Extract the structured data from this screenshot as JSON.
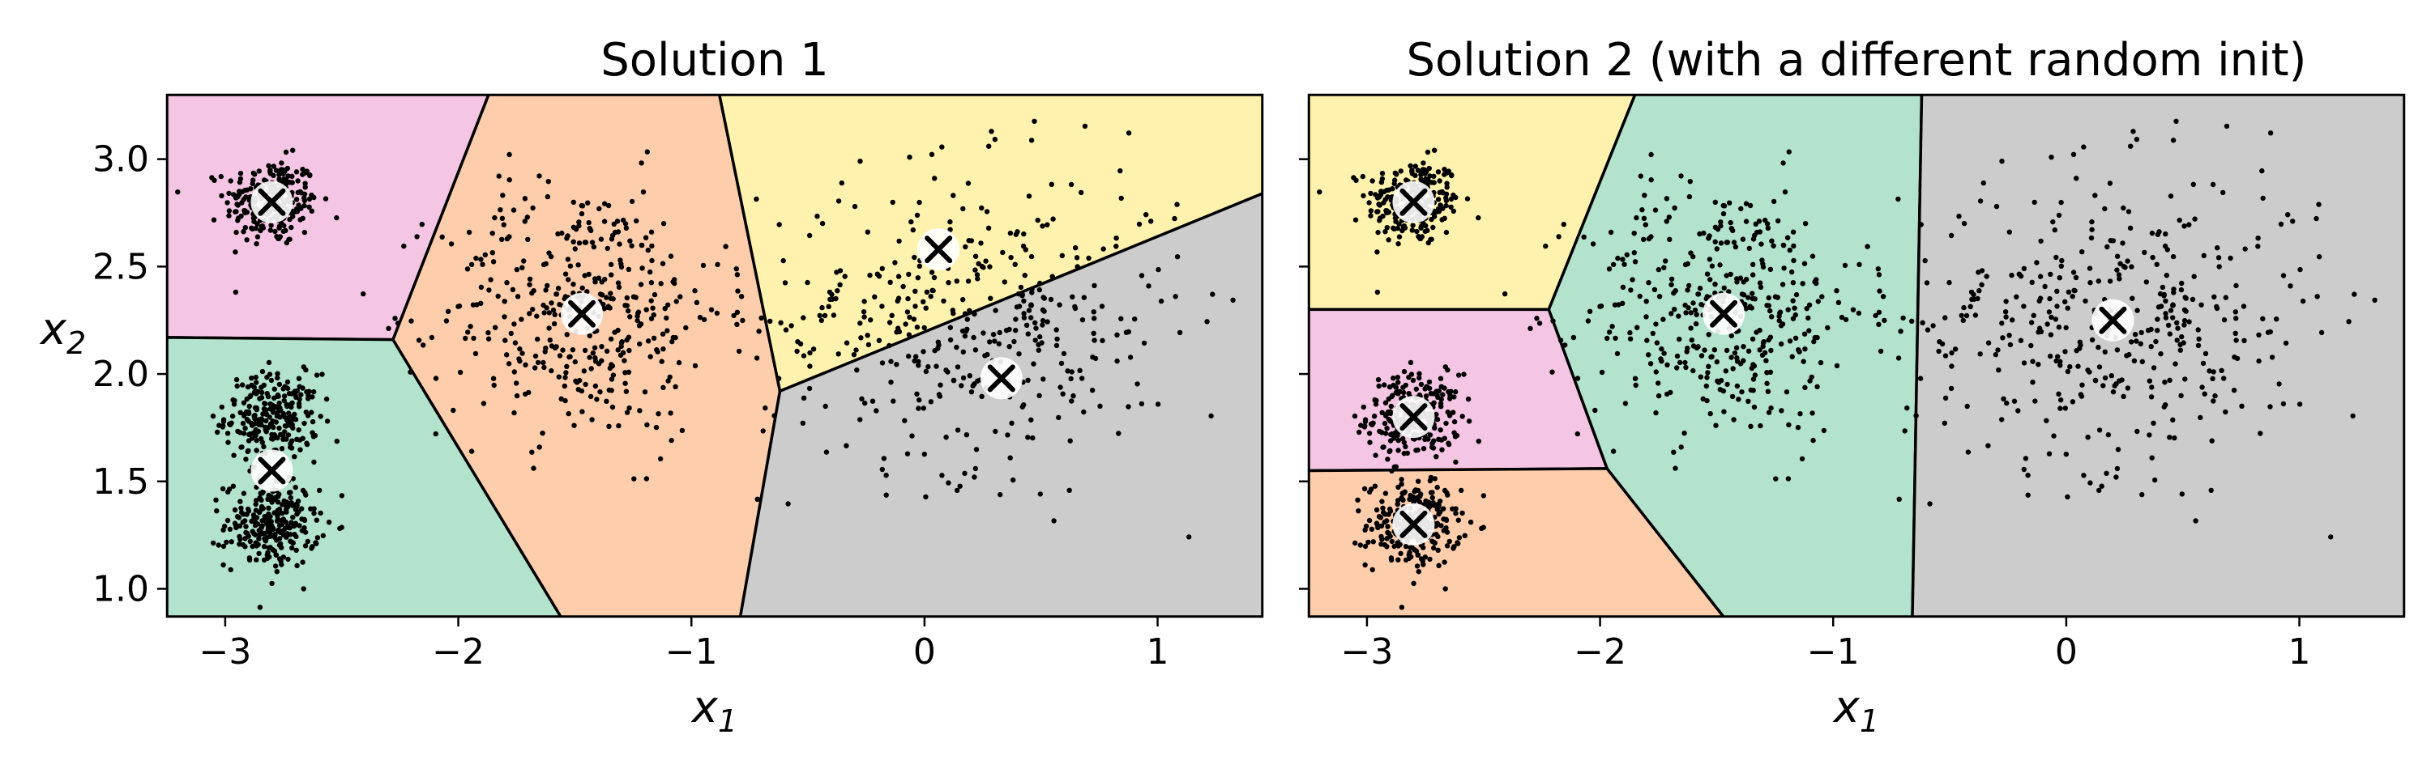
{
  "chart_data": [
    {
      "type": "scatter",
      "title": "Solution 1",
      "xlabel": "x",
      "xlabel_sub": "1",
      "ylabel": "x",
      "ylabel_sub": "2",
      "xlim": [
        -3.25,
        1.45
      ],
      "ylim": [
        0.87,
        3.3
      ],
      "xticks": [
        -3,
        -2,
        -1,
        0,
        1
      ],
      "xtick_labels": [
        "−3",
        "−2",
        "−1",
        "0",
        "1"
      ],
      "yticks": [
        1.0,
        1.5,
        2.0,
        2.5,
        3.0
      ],
      "ytick_labels": [
        "1.0",
        "1.5",
        "2.0",
        "2.5",
        "3.0"
      ],
      "grid": false,
      "centroids": [
        {
          "x": -2.8,
          "y": 2.8
        },
        {
          "x": -2.8,
          "y": 1.55
        },
        {
          "x": -1.47,
          "y": 2.28
        },
        {
          "x": 0.06,
          "y": 2.58
        },
        {
          "x": 0.33,
          "y": 1.98
        }
      ],
      "regions": [
        {
          "color": "#f4c6e4",
          "polygon": [
            [
              -3.25,
              3.3
            ],
            [
              -1.87,
              3.3
            ],
            [
              -2.28,
              2.16
            ],
            [
              -3.25,
              2.17
            ]
          ]
        },
        {
          "color": "#b3e2cd",
          "polygon": [
            [
              -3.25,
              2.17
            ],
            [
              -2.28,
              2.16
            ],
            [
              -1.56,
              0.87
            ],
            [
              -3.25,
              0.87
            ]
          ]
        },
        {
          "color": "#fdcdac",
          "polygon": [
            [
              -1.87,
              3.3
            ],
            [
              -0.88,
              3.3
            ],
            [
              -0.62,
              1.92
            ],
            [
              -0.79,
              0.87
            ],
            [
              -1.56,
              0.87
            ],
            [
              -2.28,
              2.16
            ]
          ]
        },
        {
          "color": "#fff2ae",
          "polygon": [
            [
              -0.88,
              3.3
            ],
            [
              1.45,
              3.3
            ],
            [
              1.45,
              2.84
            ],
            [
              -0.62,
              1.92
            ]
          ]
        },
        {
          "color": "#cccccc",
          "polygon": [
            [
              -0.62,
              1.92
            ],
            [
              1.45,
              2.84
            ],
            [
              1.45,
              0.87
            ],
            [
              -0.79,
              0.87
            ]
          ]
        }
      ],
      "blobs": [
        {
          "cx": -2.8,
          "cy": 2.8,
          "sx": 0.1,
          "sy": 0.1,
          "n": 250
        },
        {
          "cx": -2.8,
          "cy": 1.8,
          "sx": 0.1,
          "sy": 0.1,
          "n": 250
        },
        {
          "cx": -2.8,
          "cy": 1.3,
          "sx": 0.1,
          "sy": 0.1,
          "n": 250
        },
        {
          "cx": -1.47,
          "cy": 2.3,
          "sx": 0.3,
          "sy": 0.3,
          "n": 400
        },
        {
          "cx": 0.2,
          "cy": 2.25,
          "sx": 0.45,
          "sy": 0.35,
          "n": 420
        }
      ]
    },
    {
      "type": "scatter",
      "title": "Solution 2 (with a different random init)",
      "xlabel": "x",
      "xlabel_sub": "1",
      "ylabel": "",
      "xlim": [
        -3.25,
        1.45
      ],
      "ylim": [
        0.87,
        3.3
      ],
      "xticks": [
        -3,
        -2,
        -1,
        0,
        1
      ],
      "xtick_labels": [
        "−3",
        "−2",
        "−1",
        "0",
        "1"
      ],
      "yticks": [
        1.0,
        1.5,
        2.0,
        2.5,
        3.0
      ],
      "ytick_labels": [],
      "grid": false,
      "centroids": [
        {
          "x": -2.8,
          "y": 2.8
        },
        {
          "x": -2.8,
          "y": 1.8
        },
        {
          "x": -2.8,
          "y": 1.3
        },
        {
          "x": -1.47,
          "y": 2.28
        },
        {
          "x": 0.2,
          "y": 2.25
        }
      ],
      "regions": [
        {
          "color": "#fff2ae",
          "polygon": [
            [
              -3.25,
              3.3
            ],
            [
              -1.85,
              3.3
            ],
            [
              -2.22,
              2.3
            ],
            [
              -3.25,
              2.3
            ]
          ]
        },
        {
          "color": "#f4c6e4",
          "polygon": [
            [
              -3.25,
              2.3
            ],
            [
              -2.22,
              2.3
            ],
            [
              -1.97,
              1.56
            ],
            [
              -3.25,
              1.55
            ]
          ]
        },
        {
          "color": "#fdcdac",
          "polygon": [
            [
              -3.25,
              1.55
            ],
            [
              -1.97,
              1.56
            ],
            [
              -1.47,
              0.87
            ],
            [
              -3.25,
              0.87
            ]
          ]
        },
        {
          "color": "#b3e2cd",
          "polygon": [
            [
              -1.85,
              3.3
            ],
            [
              -0.62,
              3.3
            ],
            [
              -0.66,
              0.87
            ],
            [
              -1.47,
              0.87
            ],
            [
              -1.97,
              1.56
            ],
            [
              -2.22,
              2.3
            ]
          ]
        },
        {
          "color": "#cccccc",
          "polygon": [
            [
              -0.62,
              3.3
            ],
            [
              1.45,
              3.3
            ],
            [
              1.45,
              0.87
            ],
            [
              -0.66,
              0.87
            ]
          ]
        }
      ],
      "blobs": [
        {
          "cx": -2.8,
          "cy": 2.8,
          "sx": 0.1,
          "sy": 0.1,
          "n": 250
        },
        {
          "cx": -2.8,
          "cy": 1.8,
          "sx": 0.1,
          "sy": 0.1,
          "n": 250
        },
        {
          "cx": -2.8,
          "cy": 1.3,
          "sx": 0.1,
          "sy": 0.1,
          "n": 250
        },
        {
          "cx": -1.47,
          "cy": 2.3,
          "sx": 0.3,
          "sy": 0.3,
          "n": 400
        },
        {
          "cx": 0.2,
          "cy": 2.25,
          "sx": 0.45,
          "sy": 0.35,
          "n": 420
        }
      ]
    }
  ]
}
